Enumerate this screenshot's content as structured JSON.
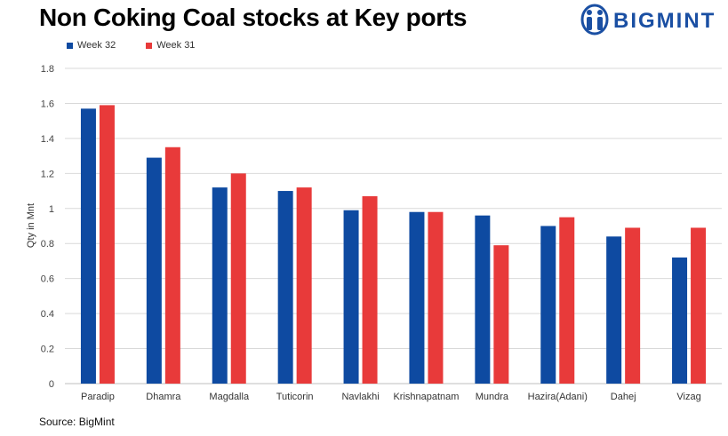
{
  "title": "Non Coking Coal stocks at Key ports",
  "logo": {
    "text": "BIGMINT",
    "color": "#1a4fa3",
    "icon": "bigmint-logo-icon"
  },
  "source": "Source: BigMint",
  "colors": {
    "week32": "#0e4aa1",
    "week31": "#e83a3a",
    "grid": "#d9d9d9"
  },
  "chart_data": {
    "type": "bar",
    "ylabel": "Qty in Mnt",
    "xlabel": "",
    "ylim": [
      0,
      1.8
    ],
    "yticks": [
      "0",
      "0.2",
      "0.4",
      "0.6",
      "0.8",
      "1",
      "1.2",
      "1.4",
      "1.6",
      "1.8"
    ],
    "grid": true,
    "legend_position": "top-left",
    "categories": [
      "Paradip",
      "Dhamra",
      "Magdalla",
      "Tuticorin",
      "Navlakhi",
      "Krishnapatnam",
      "Mundra",
      "Hazira(Adani)",
      "Dahej",
      "Vizag"
    ],
    "series": [
      {
        "name": "Week 32",
        "values": [
          1.57,
          1.29,
          1.12,
          1.1,
          0.99,
          0.98,
          0.96,
          0.9,
          0.84,
          0.72
        ]
      },
      {
        "name": "Week 31",
        "values": [
          1.59,
          1.35,
          1.2,
          1.12,
          1.07,
          0.98,
          0.79,
          0.95,
          0.89,
          0.89
        ]
      }
    ]
  }
}
